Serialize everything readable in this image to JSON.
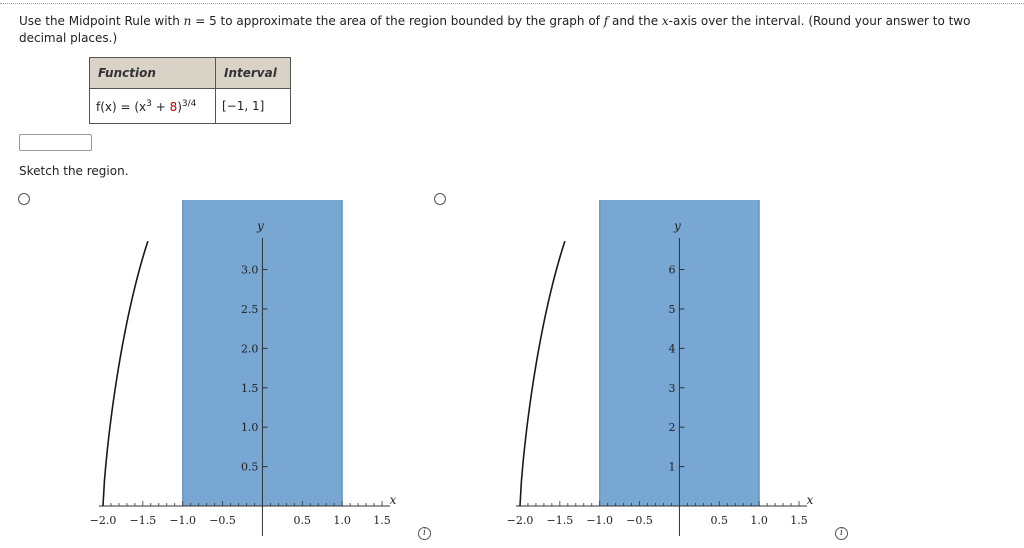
{
  "question": {
    "pre": "Use the Midpoint Rule with ",
    "n_var": "n",
    "n_rest": " = 5 to approximate the area of the region bounded by the graph of ",
    "f_var": "f",
    "mid": " and the ",
    "x_var": "x",
    "post": "-axis over the interval. (Round your answer to two decimal places.)"
  },
  "table": {
    "headers": [
      "Function",
      "Interval"
    ],
    "function_prefix": "f(x) = (x",
    "function_exp": "3",
    "function_plus": " + ",
    "function_const": "8",
    "function_close": ")",
    "function_power": "3/4",
    "interval": "[−1, 1]"
  },
  "answer_input": {
    "value": ""
  },
  "sketch_label": "Sketch the region.",
  "colors": {
    "fill": "#77a7d2",
    "fill_stroke": "#4d81b4",
    "curve": "#1a1a1a"
  },
  "charts": [
    {
      "y_label": "y",
      "x_label": "x",
      "x_ticks": [
        "−2.0",
        "−1.5",
        "−1.0",
        "−0.5",
        "0.5",
        "1.0",
        "1.5"
      ],
      "y_ticks": [
        "0.5",
        "1.0",
        "1.5",
        "2.0",
        "2.5",
        "3.0"
      ]
    },
    {
      "y_label": "y",
      "x_label": "x",
      "x_ticks": [
        "−2.0",
        "−1.5",
        "−1.0",
        "−0.5",
        "0.5",
        "1.0",
        "1.5"
      ],
      "y_ticks": [
        "1",
        "2",
        "3",
        "4",
        "5",
        "6"
      ]
    }
  ],
  "chart_data": [
    {
      "type": "area",
      "function": "(x^3+8)^(3/4)",
      "shaded_interval": [
        -1,
        1
      ],
      "xlim": [
        -2.05,
        1.6
      ],
      "ylim": [
        0,
        3.4
      ],
      "x_tick_values": [
        -2.0,
        -1.5,
        -1.0,
        -0.5,
        0.5,
        1.0,
        1.5
      ],
      "y_tick_values": [
        0.5,
        1.0,
        1.5,
        2.0,
        2.5,
        3.0
      ]
    },
    {
      "type": "area",
      "xlim": [
        -2.05,
        1.6
      ],
      "ylim": [
        0,
        6.8
      ],
      "x_tick_values": [
        -2.0,
        -1.5,
        -1.0,
        -0.5,
        0.5,
        1.0,
        1.5
      ],
      "y_tick_values": [
        1,
        2,
        3,
        4,
        5,
        6
      ]
    }
  ]
}
